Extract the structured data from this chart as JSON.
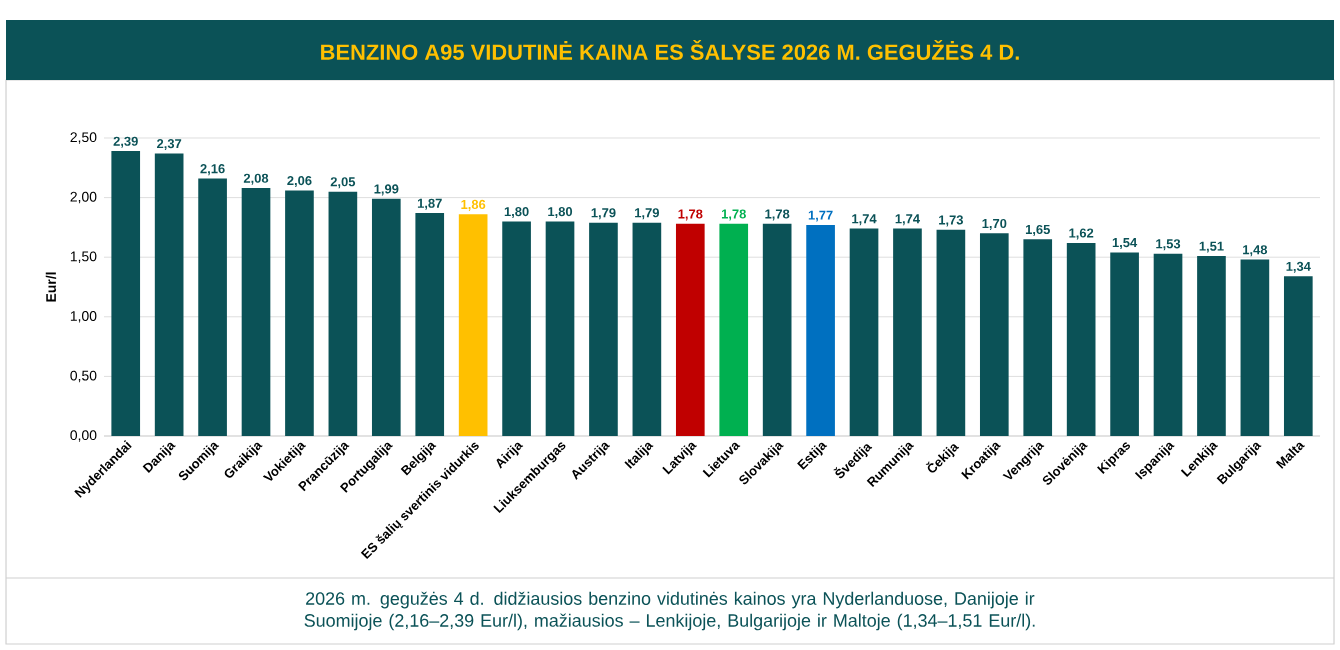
{
  "chart_data": {
    "type": "bar",
    "title": "BENZINO A95 VIDUTINĖ KAINA ES ŠALYSE 2026 M. GEGUŽĖS 4 D.",
    "categories": [
      "Nyderlandai",
      "Danija",
      "Suomija",
      "Graikija",
      "Vokietija",
      "Prancūzija",
      "Portugalija",
      "Belgija",
      "ES šalių svertinis vidurkis",
      "Airija",
      "Liuksemburgas",
      "Austrija",
      "Italija",
      "Latvija",
      "Lietuva",
      "Slovakija",
      "Estija",
      "Švedija",
      "Rumunija",
      "Čekija",
      "Kroatija",
      "Vengrija",
      "Slovėnija",
      "Kipras",
      "Ispanija",
      "Lenkija",
      "Bulgarija",
      "Malta"
    ],
    "values": [
      2.39,
      2.37,
      2.16,
      2.08,
      2.06,
      2.05,
      1.99,
      1.87,
      1.86,
      1.8,
      1.8,
      1.79,
      1.79,
      1.78,
      1.78,
      1.78,
      1.77,
      1.74,
      1.74,
      1.73,
      1.7,
      1.65,
      1.62,
      1.54,
      1.53,
      1.51,
      1.48,
      1.34
    ],
    "value_labels": [
      "2,39",
      "2,37",
      "2,16",
      "2,08",
      "2,06",
      "2,05",
      "1,99",
      "1,87",
      "1,86",
      "1,80",
      "1,80",
      "1,79",
      "1,79",
      "1,78",
      "1,78",
      "1,78",
      "1,77",
      "1,74",
      "1,74",
      "1,73",
      "1,70",
      "1,65",
      "1,62",
      "1,54",
      "1,53",
      "1,51",
      "1,48",
      "1,34"
    ],
    "colors": [
      "#0b5257",
      "#0b5257",
      "#0b5257",
      "#0b5257",
      "#0b5257",
      "#0b5257",
      "#0b5257",
      "#0b5257",
      "#ffc000",
      "#0b5257",
      "#0b5257",
      "#0b5257",
      "#0b5257",
      "#c00000",
      "#00b050",
      "#0b5257",
      "#0070c0",
      "#0b5257",
      "#0b5257",
      "#0b5257",
      "#0b5257",
      "#0b5257",
      "#0b5257",
      "#0b5257",
      "#0b5257",
      "#0b5257",
      "#0b5257",
      "#0b5257"
    ],
    "ylabel": "Eur/l",
    "ylim": [
      0,
      2.5
    ],
    "yticks": [
      {
        "value": 0,
        "label": "0,00"
      },
      {
        "value": 0.5,
        "label": "0,50"
      },
      {
        "value": 1,
        "label": "1,00"
      },
      {
        "value": 1.5,
        "label": "1,50"
      },
      {
        "value": 2,
        "label": "2,00"
      },
      {
        "value": 2.5,
        "label": "2,50"
      }
    ],
    "grid": "y",
    "annotations": [
      "2026 m. gegužės 4 d. didžiausios benzino vidutinės kainos yra Nyderlanduose, Danijoje ir Suomijoje (2,16–2,39 Eur/l), mažiausios – Lenkijoje, Bulgarijoje ir Maltoje (1,34–1,51 Eur/l)."
    ]
  }
}
